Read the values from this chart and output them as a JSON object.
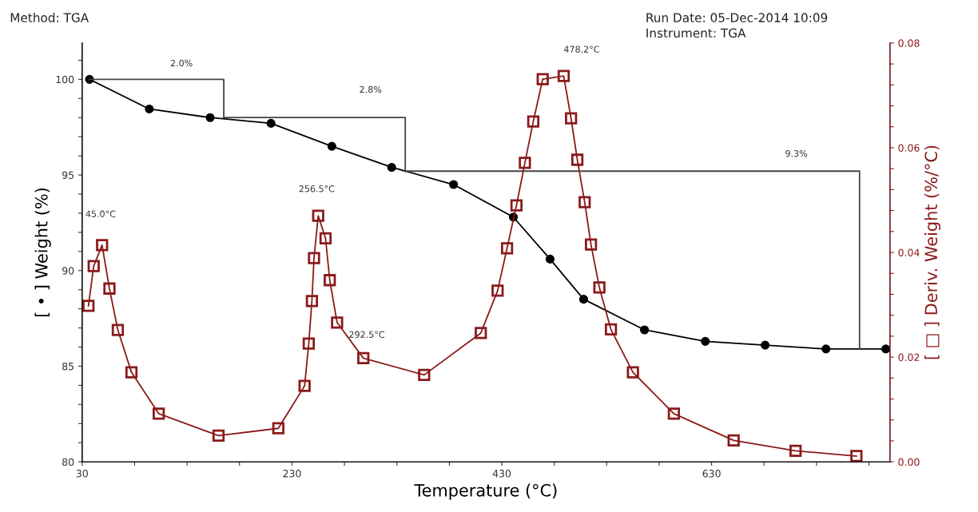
{
  "chart_data": {
    "type": "line",
    "xlabel": "Temperature (°C)",
    "ylabel": "[ • ] Weight (%)",
    "y2label": "[ □ ] Deriv. Weight (%/°C)",
    "xlim": [
      30,
      800
    ],
    "ylim": [
      80,
      101.9
    ],
    "y2lim": [
      0,
      0.08
    ],
    "xticks": [
      30,
      {
        "value": 80,
        "label": null
      },
      {
        "value": 130,
        "label": null
      },
      {
        "value": 180,
        "label": null
      },
      230,
      {
        "value": 280,
        "label": null
      },
      {
        "value": 330,
        "label": null
      },
      {
        "value": 380,
        "label": null
      },
      430,
      {
        "value": 480,
        "label": null
      },
      {
        "value": 530,
        "label": null
      },
      {
        "value": 580,
        "label": null
      },
      630,
      {
        "value": 680,
        "label": null
      },
      {
        "value": 730,
        "label": null
      },
      {
        "value": 780,
        "label": null
      }
    ],
    "yticks": [
      80,
      {
        "value": 81,
        "label": null
      },
      {
        "value": 82,
        "label": null
      },
      {
        "value": 83,
        "label": null
      },
      {
        "value": 84,
        "label": null
      },
      85,
      {
        "value": 86,
        "label": null
      },
      {
        "value": 87,
        "label": null
      },
      {
        "value": 88,
        "label": null
      },
      {
        "value": 89,
        "label": null
      },
      90,
      {
        "value": 91,
        "label": null
      },
      {
        "value": 92,
        "label": null
      },
      {
        "value": 93,
        "label": null
      },
      {
        "value": 94,
        "label": null
      },
      95,
      {
        "value": 96,
        "label": null
      },
      {
        "value": 97,
        "label": null
      },
      {
        "value": 98,
        "label": null
      },
      {
        "value": 99,
        "label": null
      },
      100,
      {
        "value": 101,
        "label": null
      }
    ],
    "y2ticks": [
      {
        "value": 0,
        "label": "0.00"
      },
      {
        "value": 0.004,
        "label": null
      },
      {
        "value": 0.008,
        "label": null
      },
      {
        "value": 0.012,
        "label": null
      },
      {
        "value": 0.016,
        "label": null
      },
      0.02,
      {
        "value": 0.024,
        "label": null
      },
      {
        "value": 0.028,
        "label": null
      },
      {
        "value": 0.032,
        "label": null
      },
      {
        "value": 0.036,
        "label": null
      },
      0.04,
      {
        "value": 0.044,
        "label": null
      },
      {
        "value": 0.048,
        "label": null
      },
      {
        "value": 0.052,
        "label": null
      },
      {
        "value": 0.056,
        "label": null
      },
      0.06,
      {
        "value": 0.064,
        "label": null
      },
      {
        "value": 0.068,
        "label": null
      },
      {
        "value": 0.072,
        "label": null
      },
      {
        "value": 0.076,
        "label": null
      },
      0.08
    ],
    "grid": false,
    "legend": false,
    "series": [
      {
        "color": "#000000",
        "marker": "circle",
        "x": [
          37,
          94,
          152,
          210,
          268,
          325,
          384,
          441,
          476,
          508,
          566,
          624,
          681,
          739,
          796
        ],
        "values": [
          100,
          98.45,
          98.0,
          97.7,
          96.5,
          95.4,
          94.5,
          92.8,
          90.6,
          88.5,
          86.9,
          86.3,
          86.1,
          85.9,
          85.9
        ]
      },
      {
        "color": "#8b1a1a",
        "marker": "square",
        "axis": "y2",
        "x": [
          36,
          41,
          49,
          56,
          64,
          77,
          103,
          160,
          217,
          242,
          246,
          249,
          251,
          255,
          262,
          266,
          273,
          298,
          356,
          410,
          426,
          435,
          444,
          452,
          460,
          469,
          489,
          496,
          502,
          509,
          515,
          523,
          534,
          555,
          594,
          651,
          710,
          768
        ],
        "values": [
          0.0298,
          0.0374,
          0.0414,
          0.0331,
          0.0252,
          0.0171,
          0.0092,
          0.005,
          0.0064,
          0.0145,
          0.0226,
          0.0307,
          0.0389,
          0.047,
          0.0427,
          0.0347,
          0.0266,
          0.0198,
          0.0166,
          0.0246,
          0.0327,
          0.0408,
          0.049,
          0.0571,
          0.065,
          0.0731,
          0.0737,
          0.0656,
          0.0577,
          0.0496,
          0.0415,
          0.0333,
          0.0253,
          0.0171,
          0.0092,
          0.0041,
          0.0021,
          0.0011
        ]
      },
      {
        "color": "#444444",
        "marker": "none",
        "x": [
          37,
          165,
          165
        ],
        "values": [
          100,
          100,
          98.0
        ]
      },
      {
        "color": "#444444",
        "marker": "none",
        "x": [
          165,
          338,
          338
        ],
        "values": [
          98.0,
          98.0,
          95.2
        ]
      },
      {
        "color": "#444444",
        "marker": "none",
        "x": [
          338,
          771,
          771
        ],
        "values": [
          95.2,
          95.2,
          85.9
        ]
      }
    ],
    "annotations": [
      "Method: TGA",
      "Run Date: 05-Dec-2014 10:09",
      "Instrument: TGA",
      "2.0%",
      "2.8%",
      "9.3%",
      "45.0°C",
      "256.5°C",
      "292.5°C",
      "478.2°C"
    ]
  }
}
